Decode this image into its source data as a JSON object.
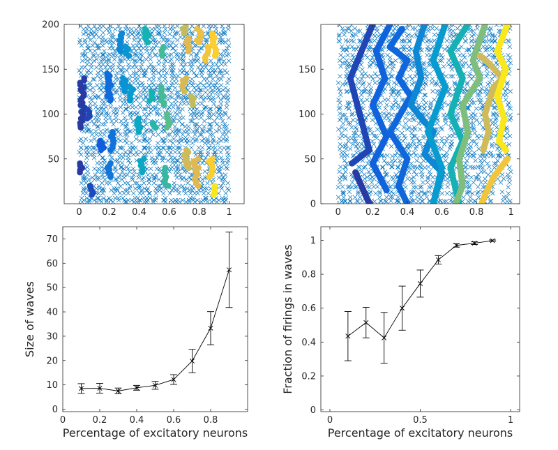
{
  "figure": {
    "background": "#ffffff",
    "axis_color": "#262626"
  },
  "chart_data": [
    {
      "id": "raster-top-left",
      "type": "scatter",
      "title": "",
      "xlabel": "",
      "ylabel": "",
      "xlim": [
        -0.1,
        1.1
      ],
      "ylim": [
        0,
        200
      ],
      "xticks": [
        0,
        0.2,
        0.4,
        0.6,
        0.8,
        1
      ],
      "xtick_labels": [
        "0",
        "0.2",
        "0.4",
        "0.6",
        "0.8",
        "1"
      ],
      "yticks": [
        50,
        100,
        150,
        200
      ],
      "ytick_labels": [
        "50",
        "100",
        "150",
        "200"
      ],
      "series": [
        {
          "marker": "x",
          "color": "#0072bd",
          "x_range": [
            0,
            1
          ],
          "y_range": [
            0,
            200
          ],
          "description_count": 900
        },
        {
          "marker": "dot",
          "colormap": "parula",
          "clusters": [
            {
              "x": 0.02,
              "y": [
                140,
                85
              ],
              "c": 0.05
            },
            {
              "x": 0.01,
              "y": [
                45,
                35
              ],
              "c": 0.05
            },
            {
              "x": 0.08,
              "y": [
                20,
                10
              ],
              "c": 0.1
            },
            {
              "x": 0.06,
              "y": [
                105,
                95
              ],
              "c": 0.08
            },
            {
              "x": 0.15,
              "y": [
                70,
                60
              ],
              "c": 0.15
            },
            {
              "x": 0.2,
              "y": [
                145,
                115
              ],
              "c": 0.22
            },
            {
              "x": 0.22,
              "y": [
                80,
                60
              ],
              "c": 0.25
            },
            {
              "x": 0.2,
              "y": [
                45,
                30
              ],
              "c": 0.27
            },
            {
              "x": 0.28,
              "y": [
                190,
                170
              ],
              "c": 0.35
            },
            {
              "x": 0.3,
              "y": [
                140,
                125
              ],
              "c": 0.4
            },
            {
              "x": 0.32,
              "y": [
                175,
                165
              ],
              "c": 0.42
            },
            {
              "x": 0.35,
              "y": [
                130,
                115
              ],
              "c": 0.45
            },
            {
              "x": 0.4,
              "y": [
                95,
                80
              ],
              "c": 0.5
            },
            {
              "x": 0.42,
              "y": [
                50,
                35
              ],
              "c": 0.5
            },
            {
              "x": 0.45,
              "y": [
                195,
                180
              ],
              "c": 0.55
            },
            {
              "x": 0.48,
              "y": [
                125,
                115
              ],
              "c": 0.55
            },
            {
              "x": 0.5,
              "y": [
                90,
                85
              ],
              "c": 0.58
            },
            {
              "x": 0.55,
              "y": [
                175,
                165
              ],
              "c": 0.62
            },
            {
              "x": 0.56,
              "y": [
                130,
                110
              ],
              "c": 0.62
            },
            {
              "x": 0.58,
              "y": [
                40,
                20
              ],
              "c": 0.6
            },
            {
              "x": 0.6,
              "y": [
                100,
                85
              ],
              "c": 0.65
            },
            {
              "x": 0.7,
              "y": [
                198,
                190
              ],
              "c": 0.8
            },
            {
              "x": 0.72,
              "y": [
                185,
                170
              ],
              "c": 0.85
            },
            {
              "x": 0.7,
              "y": [
                140,
                125
              ],
              "c": 0.83
            },
            {
              "x": 0.75,
              "y": [
                120,
                110
              ],
              "c": 0.8
            },
            {
              "x": 0.72,
              "y": [
                60,
                40
              ],
              "c": 0.82
            },
            {
              "x": 0.8,
              "y": [
                195,
                180
              ],
              "c": 0.88
            },
            {
              "x": 0.78,
              "y": [
                50,
                20
              ],
              "c": 0.85
            },
            {
              "x": 0.85,
              "y": [
                175,
                160
              ],
              "c": 0.9
            },
            {
              "x": 0.9,
              "y": [
                190,
                165
              ],
              "c": 0.93
            },
            {
              "x": 0.88,
              "y": [
                50,
                30
              ],
              "c": 0.93
            },
            {
              "x": 0.9,
              "y": [
                20,
                10
              ],
              "c": 0.97
            }
          ]
        }
      ]
    },
    {
      "id": "raster-top-right",
      "type": "scatter",
      "title": "",
      "xlabel": "",
      "ylabel": "",
      "xlim": [
        -0.1,
        1.05
      ],
      "ylim": [
        0,
        200
      ],
      "xticks": [
        0,
        0.2,
        0.4,
        0.6,
        0.8,
        1
      ],
      "xtick_labels": [
        "0",
        "0.2",
        "0.4",
        "0.6",
        "0.8",
        "1"
      ],
      "yticks": [
        0,
        50,
        100,
        150
      ],
      "ytick_labels": [
        "0",
        "50",
        "100",
        "150"
      ],
      "series": [
        {
          "marker": "x",
          "color": "#0072bd",
          "x_range": [
            0,
            1
          ],
          "y_range": [
            0,
            200
          ]
        },
        {
          "marker": "dot",
          "colormap": "parula",
          "waves": [
            {
              "c": 0.05,
              "points": [
                [
                  0.1,
                  35
                ],
                [
                  0.18,
                  0
                ]
              ]
            },
            {
              "c": 0.08,
              "points": [
                [
                  0.2,
                  200
                ],
                [
                  0.07,
                  140
                ],
                [
                  0.18,
                  60
                ],
                [
                  0.08,
                  45
                ]
              ]
            },
            {
              "c": 0.18,
              "points": [
                [
                  0.3,
                  200
                ],
                [
                  0.22,
                  170
                ],
                [
                  0.27,
                  140
                ],
                [
                  0.2,
                  110
                ],
                [
                  0.28,
                  75
                ],
                [
                  0.2,
                  45
                ],
                [
                  0.28,
                  15
                ]
              ]
            },
            {
              "c": 0.2,
              "points": [
                [
                  0.37,
                  195
                ],
                [
                  0.3,
                  175
                ],
                [
                  0.4,
                  160
                ],
                [
                  0.35,
                  140
                ],
                [
                  0.42,
                  120
                ],
                [
                  0.3,
                  80
                ],
                [
                  0.4,
                  50
                ],
                [
                  0.35,
                  20
                ],
                [
                  0.4,
                  0
                ]
              ]
            },
            {
              "c": 0.35,
              "points": [
                [
                  0.5,
                  200
                ],
                [
                  0.45,
                  170
                ],
                [
                  0.48,
                  140
                ],
                [
                  0.42,
                  110
                ],
                [
                  0.55,
                  80
                ],
                [
                  0.5,
                  55
                ],
                [
                  0.6,
                  35
                ],
                [
                  0.55,
                  0
                ]
              ]
            },
            {
              "c": 0.45,
              "points": [
                [
                  0.62,
                  200
                ],
                [
                  0.55,
                  160
                ],
                [
                  0.62,
                  130
                ],
                [
                  0.52,
                  80
                ],
                [
                  0.6,
                  40
                ],
                [
                  0.55,
                  0
                ]
              ]
            },
            {
              "c": 0.55,
              "points": [
                [
                  0.75,
                  200
                ],
                [
                  0.65,
                  170
                ],
                [
                  0.72,
                  140
                ],
                [
                  0.65,
                  100
                ],
                [
                  0.72,
                  70
                ],
                [
                  0.65,
                  40
                ],
                [
                  0.7,
                  0
                ]
              ]
            },
            {
              "c": 0.7,
              "points": [
                [
                  0.85,
                  200
                ],
                [
                  0.78,
                  160
                ],
                [
                  0.82,
                  140
                ],
                [
                  0.72,
                  110
                ],
                [
                  0.75,
                  80
                ],
                [
                  0.7,
                  50
                ],
                [
                  0.72,
                  20
                ],
                [
                  0.68,
                  0
                ]
              ]
            },
            {
              "c": 0.82,
              "points": [
                [
                  0.82,
                  165
                ],
                [
                  0.88,
                  155
                ],
                [
                  0.95,
                  140
                ],
                [
                  0.9,
                  130
                ],
                [
                  0.85,
                  100
                ],
                [
                  0.87,
                  80
                ],
                [
                  0.84,
                  60
                ]
              ]
            },
            {
              "c": 0.9,
              "points": [
                [
                  0.98,
                  50
                ],
                [
                  0.9,
                  30
                ],
                [
                  0.85,
                  10
                ],
                [
                  0.83,
                  0
                ]
              ]
            },
            {
              "c": 0.97,
              "points": [
                [
                  0.98,
                  200
                ],
                [
                  0.92,
                  170
                ],
                [
                  0.97,
                  150
                ],
                [
                  0.92,
                  120
                ],
                [
                  0.96,
                  95
                ],
                [
                  0.93,
                  70
                ],
                [
                  0.97,
                  60
                ]
              ]
            }
          ]
        }
      ]
    },
    {
      "id": "size-of-waves",
      "type": "line",
      "title": "",
      "xlabel": "Percentage of excitatory neurons",
      "ylabel": "Size of waves",
      "xlim": [
        0,
        1
      ],
      "ylim": [
        -1,
        75
      ],
      "xticks": [
        0,
        0.2,
        0.4,
        0.6,
        0.8
      ],
      "xtick_labels": [
        "0",
        "0.2",
        "0.4",
        "0.6",
        "0.8"
      ],
      "yticks": [
        0,
        10,
        20,
        30,
        40,
        50,
        60,
        70
      ],
      "ytick_labels": [
        "0",
        "10",
        "20",
        "30",
        "40",
        "50",
        "60",
        "70"
      ],
      "series": [
        {
          "x": [
            0.1,
            0.2,
            0.3,
            0.4,
            0.5,
            0.6,
            0.7,
            0.8,
            0.9
          ],
          "y": [
            8.5,
            8.6,
            7.5,
            8.8,
            9.8,
            12.2,
            19.8,
            33.3,
            57.3
          ],
          "err": [
            2.0,
            2.0,
            1.2,
            1.0,
            1.6,
            2.0,
            4.8,
            6.8,
            15.5
          ],
          "marker": "x",
          "color": "#000000"
        }
      ]
    },
    {
      "id": "fraction-of-firings",
      "type": "line",
      "title": "",
      "xlabel": "Percentage of excitatory neurons",
      "ylabel": "Fraction of firings in waves",
      "xlim": [
        -0.05,
        1.05
      ],
      "ylim": [
        -0.01,
        1.08
      ],
      "xticks": [
        0,
        0.5,
        1
      ],
      "xtick_labels": [
        "0",
        "0.5",
        "1"
      ],
      "yticks": [
        0,
        0.2,
        0.4,
        0.6,
        0.8,
        1
      ],
      "ytick_labels": [
        "0",
        "0.2",
        "0.4",
        "0.6",
        "0.8",
        "1"
      ],
      "series": [
        {
          "x": [
            0.1,
            0.2,
            0.3,
            0.4,
            0.5,
            0.6,
            0.7,
            0.8,
            0.9
          ],
          "y": [
            0.435,
            0.515,
            0.425,
            0.6,
            0.745,
            0.885,
            0.97,
            0.983,
            0.998
          ],
          "err": [
            0.145,
            0.09,
            0.15,
            0.13,
            0.08,
            0.025,
            0.01,
            0.008,
            0.004
          ],
          "marker": "x",
          "color": "#000000"
        }
      ]
    }
  ]
}
